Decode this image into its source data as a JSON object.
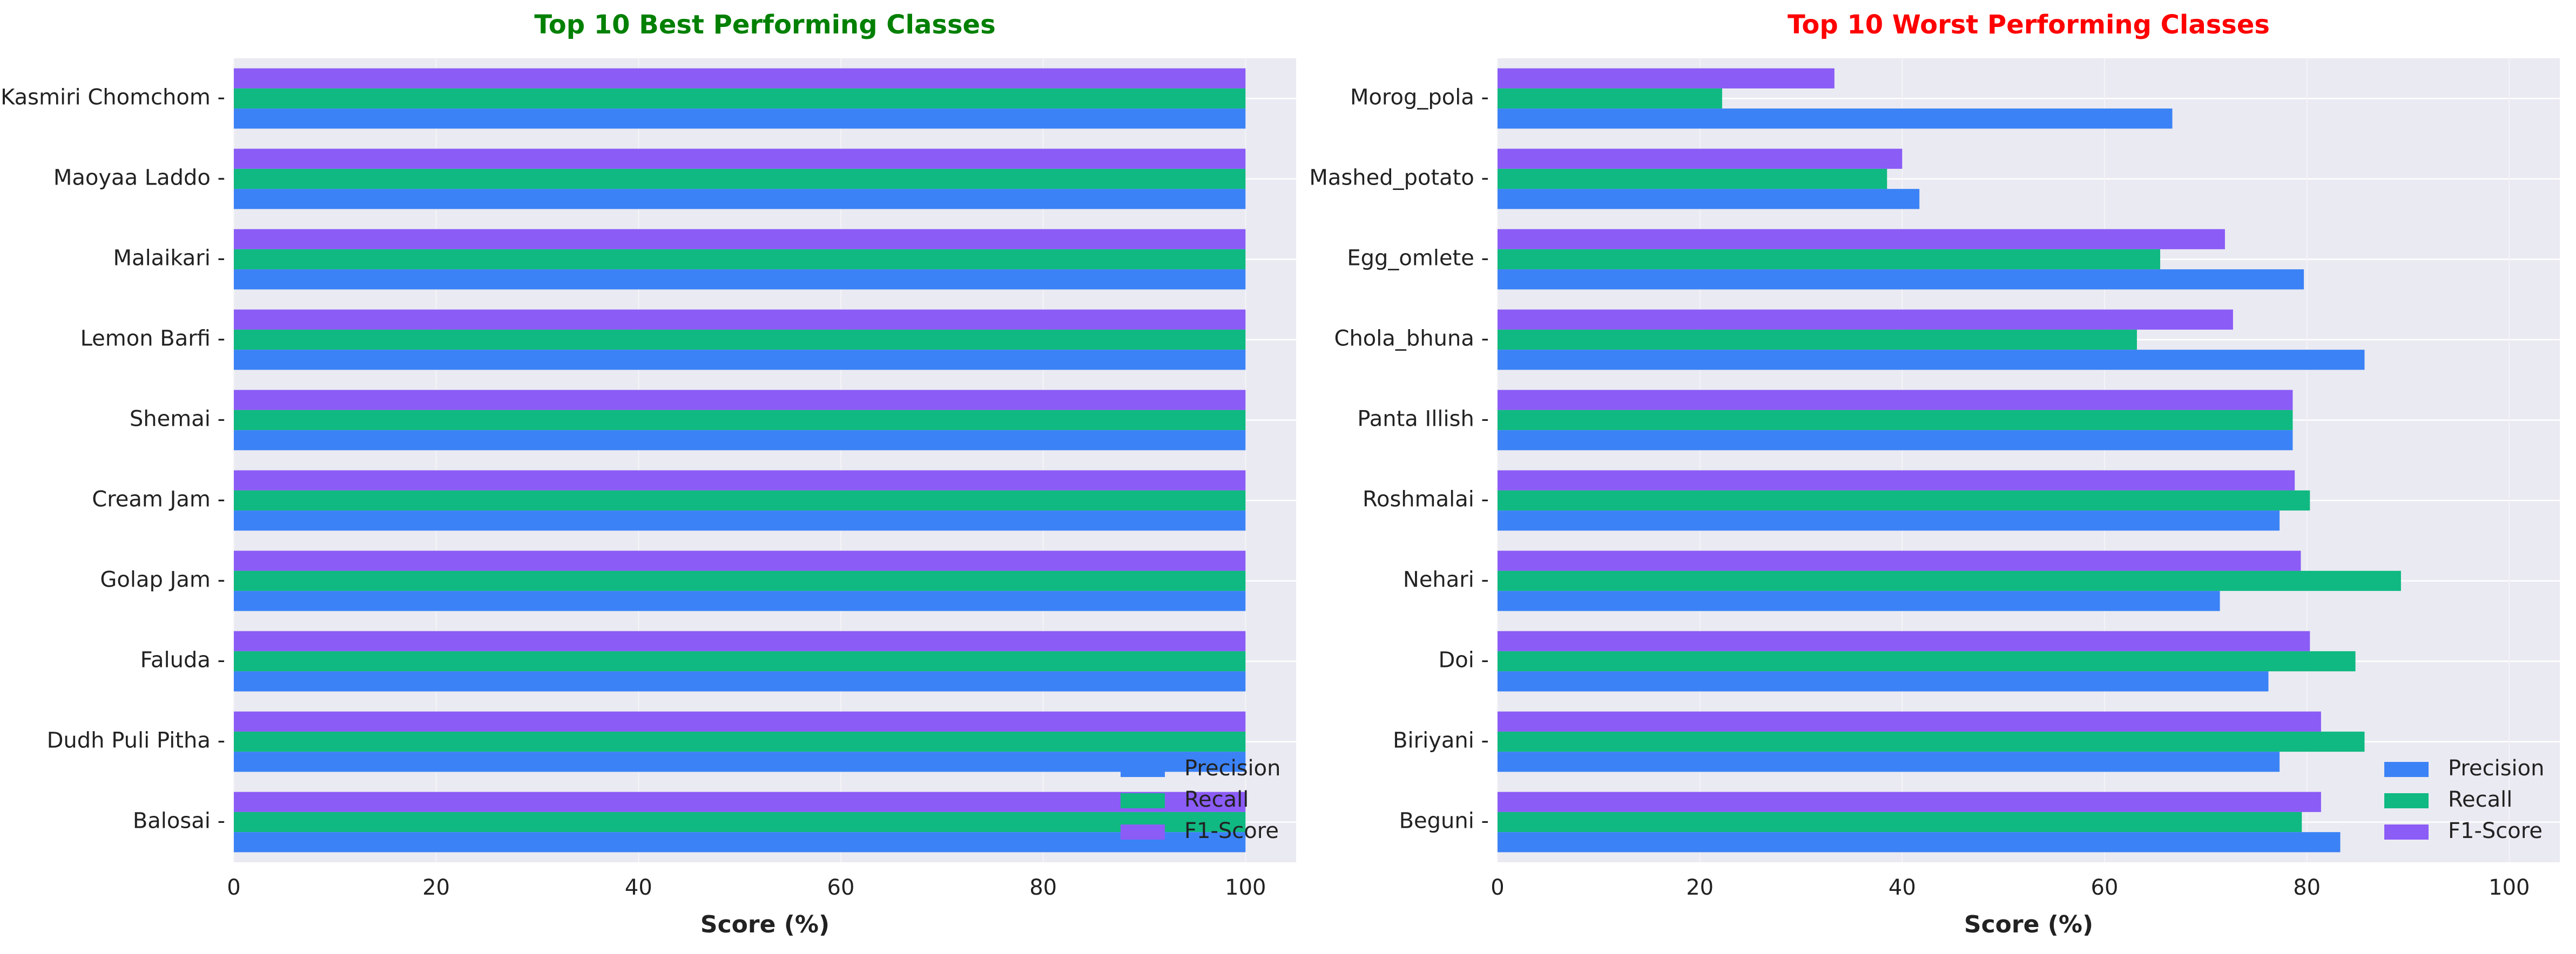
{
  "chart_data": [
    {
      "type": "bar",
      "orientation": "horizontal",
      "title": "Top 10 Best Performing Classes",
      "title_color": "#008000",
      "xlabel": "Score (%)",
      "ylabel": "",
      "xlim": [
        0,
        105
      ],
      "xticks": [
        0,
        20,
        40,
        60,
        80,
        100
      ],
      "grid": true,
      "legend_position": "lower-right",
      "categories": [
        "Kasmiri Chomchom",
        "Maoyaa Laddo",
        "Malaikari",
        "Lemon Barfi",
        "Shemai",
        "Cream Jam",
        "Golap Jam",
        "Faluda",
        "Dudh Puli Pitha",
        "Balosai"
      ],
      "series": [
        {
          "name": "Precision",
          "color": "#3b82f6",
          "values": [
            100,
            100,
            100,
            100,
            100,
            100,
            100,
            100,
            100,
            100
          ]
        },
        {
          "name": "Recall",
          "color": "#10b981",
          "values": [
            100,
            100,
            100,
            100,
            100,
            100,
            100,
            100,
            100,
            100
          ]
        },
        {
          "name": "F1-Score",
          "color": "#8b5cf6",
          "values": [
            100,
            100,
            100,
            100,
            100,
            100,
            100,
            100,
            100,
            100
          ]
        }
      ]
    },
    {
      "type": "bar",
      "orientation": "horizontal",
      "title": "Top 10 Worst Performing Classes",
      "title_color": "#ff0000",
      "xlabel": "Score (%)",
      "ylabel": "",
      "xlim": [
        0,
        105
      ],
      "xticks": [
        0,
        20,
        40,
        60,
        80,
        100
      ],
      "grid": true,
      "legend_position": "lower-right",
      "categories": [
        "Morog_pola",
        "Mashed_potato",
        "Egg_omlete",
        "Chola_bhuna",
        "Panta Illish",
        "Roshmalai",
        "Nehari",
        "Doi",
        "Biriyani",
        "Beguni"
      ],
      "series": [
        {
          "name": "Precision",
          "color": "#3b82f6",
          "values": [
            66.7,
            41.7,
            79.7,
            85.7,
            78.6,
            77.3,
            71.4,
            76.2,
            77.3,
            83.3
          ]
        },
        {
          "name": "Recall",
          "color": "#10b981",
          "values": [
            22.2,
            38.5,
            65.5,
            63.2,
            78.6,
            80.3,
            89.3,
            84.8,
            85.7,
            79.5
          ]
        },
        {
          "name": "F1-Score",
          "color": "#8b5cf6",
          "values": [
            33.3,
            40.0,
            71.9,
            72.7,
            78.6,
            78.8,
            79.4,
            80.3,
            81.4,
            81.4
          ]
        }
      ]
    }
  ]
}
